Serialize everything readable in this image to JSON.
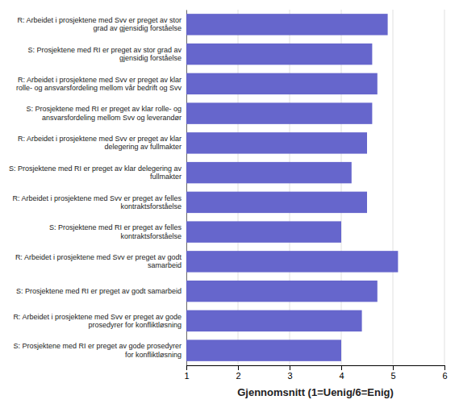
{
  "chart_data": {
    "type": "bar",
    "orientation": "horizontal",
    "categories": [
      "S: Prosjektene med RI er preget av gode prosedyrer\nfor konfliktløsning",
      "R: Arbeidet i prosjektene med Svv er preget av gode\nprosedyrer for konfliktløsning",
      "S: Prosjektene med RI er preget av godt samarbeid",
      "R: Arbeidet i prosjektene med Svv er preget av godt\nsamarbeid",
      "S: Prosjektene med RI er preget av felles\nkontraktsforståelse",
      "R: Arbeidet i prosjektene med Svv er preget av felles\nkontraktsforståelse",
      "S: Prosjektene med RI er preget av klar delegering av\nfullmakter",
      "R: Arbeidet i prosjektene med Svv er preget av klar\ndelegering av fullmakter",
      "S: Prosjektene med RI er preget av klar rolle- og\nansvarsfordeling mellom Svv og leverandør",
      "R: Arbeidet i prosjektene med Svv er preget av klar\nrolle- og ansvarsfordeling mellom vår bedrift og Svv",
      "S: Prosjektene med RI er preget av stor grad av\ngjensidig forståelse",
      "R: Arbeidet i prosjektene med Svv er preget av stor\ngrad av gjensidig forståelse"
    ],
    "values": [
      4.0,
      4.4,
      4.7,
      5.1,
      4.0,
      4.5,
      4.2,
      4.5,
      4.6,
      4.7,
      4.6,
      4.9
    ],
    "color": "#6666cc",
    "xlabel": "Gjennomsnitt (1=Uenig/6=Enig)",
    "xlim": [
      1,
      6
    ],
    "xticks": [
      1,
      2,
      3,
      4,
      5,
      6
    ],
    "grid": true
  }
}
